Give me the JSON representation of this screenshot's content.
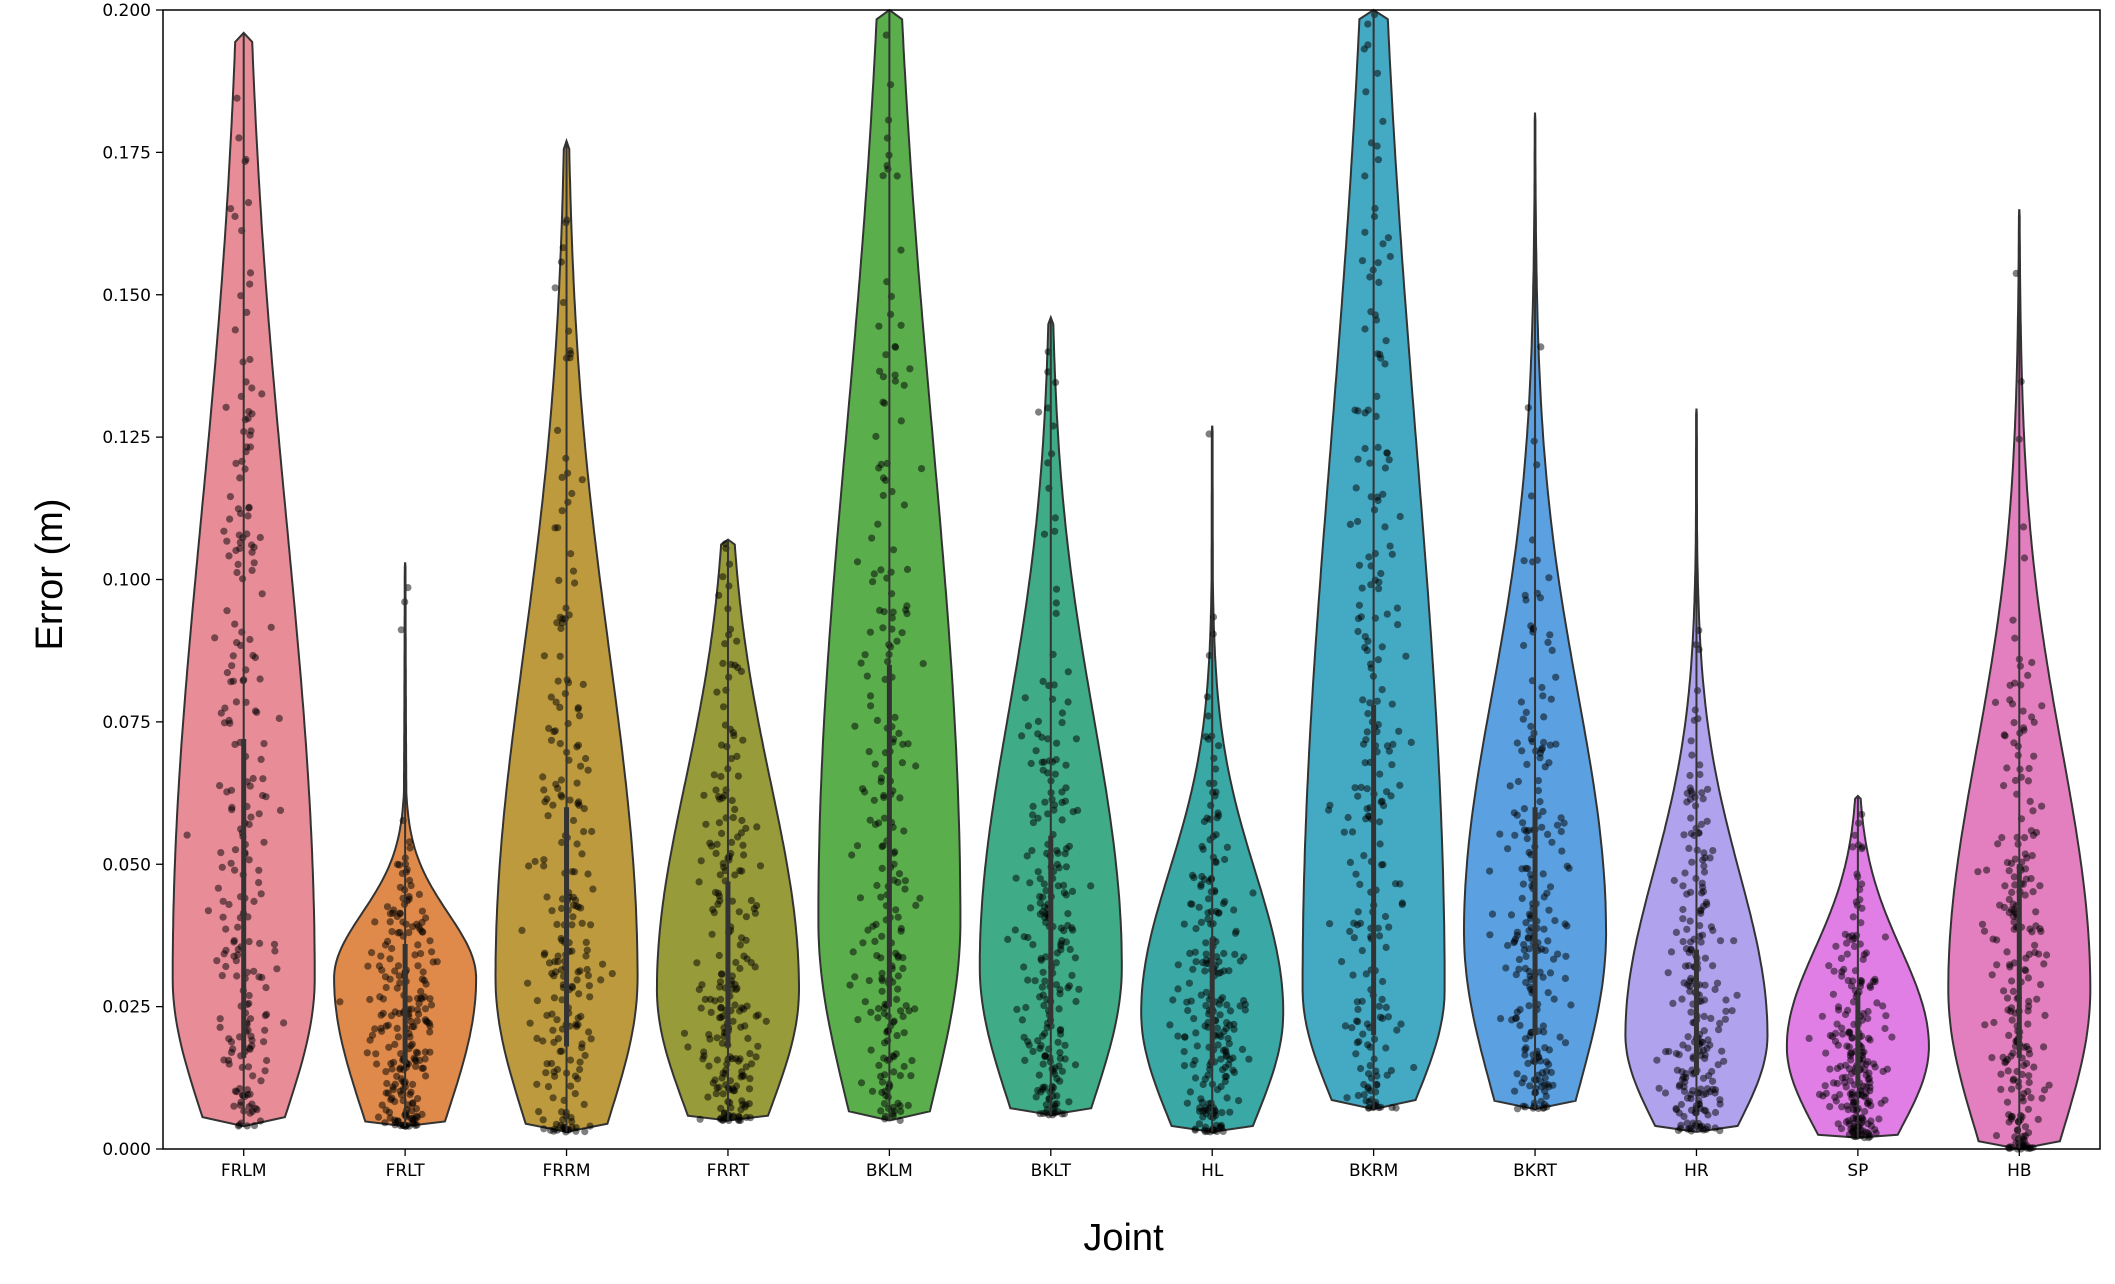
{
  "chart_data": {
    "type": "violin",
    "title": "",
    "xlabel": "Joint",
    "ylabel": "Error (m)",
    "ylim": [
      0,
      0.2
    ],
    "yticks": [
      "0.000",
      "0.025",
      "0.050",
      "0.075",
      "0.100",
      "0.125",
      "0.150",
      "0.175",
      "0.200"
    ],
    "grid": false,
    "legend": "none",
    "points_overlay": "black semi-transparent jittered dots",
    "categories": [
      "FRLM",
      "FRLT",
      "FRRM",
      "FRRT",
      "BKLM",
      "BKLT",
      "HL",
      "BKRM",
      "BKRT",
      "HR",
      "SP",
      "HB"
    ],
    "series": [
      {
        "category": "FRLM",
        "color": "#e88c98",
        "min": 0.004,
        "q1": 0.016,
        "median": 0.032,
        "q3": 0.072,
        "max": 0.196,
        "peak": 0.03
      },
      {
        "category": "FRLT",
        "color": "#df8a4a",
        "min": 0.004,
        "q1": 0.015,
        "median": 0.025,
        "q3": 0.036,
        "max": 0.103,
        "peak": 0.03
      },
      {
        "category": "FRRM",
        "color": "#bd9a3e",
        "min": 0.003,
        "q1": 0.018,
        "median": 0.036,
        "q3": 0.06,
        "max": 0.177,
        "peak": 0.03
      },
      {
        "category": "FRRT",
        "color": "#989b3a",
        "min": 0.005,
        "q1": 0.018,
        "median": 0.031,
        "q3": 0.047,
        "max": 0.107,
        "peak": 0.028
      },
      {
        "category": "BKLM",
        "color": "#5aaf4c",
        "min": 0.005,
        "q1": 0.025,
        "median": 0.052,
        "q3": 0.085,
        "max": 0.2,
        "peak": 0.04
      },
      {
        "category": "BKLT",
        "color": "#3fab87",
        "min": 0.006,
        "q1": 0.022,
        "median": 0.035,
        "q3": 0.055,
        "max": 0.146,
        "peak": 0.032
      },
      {
        "category": "HL",
        "color": "#3aa8a5",
        "min": 0.003,
        "q1": 0.015,
        "median": 0.025,
        "q3": 0.037,
        "max": 0.127,
        "peak": 0.024
      },
      {
        "category": "BKRM",
        "color": "#44a9c3",
        "min": 0.007,
        "q1": 0.02,
        "median": 0.035,
        "q3": 0.078,
        "max": 0.2,
        "peak": 0.028
      },
      {
        "category": "BKRT",
        "color": "#5ba0e0",
        "min": 0.007,
        "q1": 0.02,
        "median": 0.038,
        "q3": 0.06,
        "max": 0.182,
        "peak": 0.038
      },
      {
        "category": "HR",
        "color": "#b0a2ec",
        "min": 0.003,
        "q1": 0.013,
        "median": 0.022,
        "q3": 0.035,
        "max": 0.13,
        "peak": 0.02
      },
      {
        "category": "SP",
        "color": "#e07ee6",
        "min": 0.002,
        "q1": 0.011,
        "median": 0.018,
        "q3": 0.027,
        "max": 0.062,
        "peak": 0.018
      },
      {
        "category": "HB",
        "color": "#e37fbe",
        "min": 0.0,
        "q1": 0.016,
        "median": 0.03,
        "q3": 0.05,
        "max": 0.165,
        "peak": 0.028
      }
    ]
  }
}
